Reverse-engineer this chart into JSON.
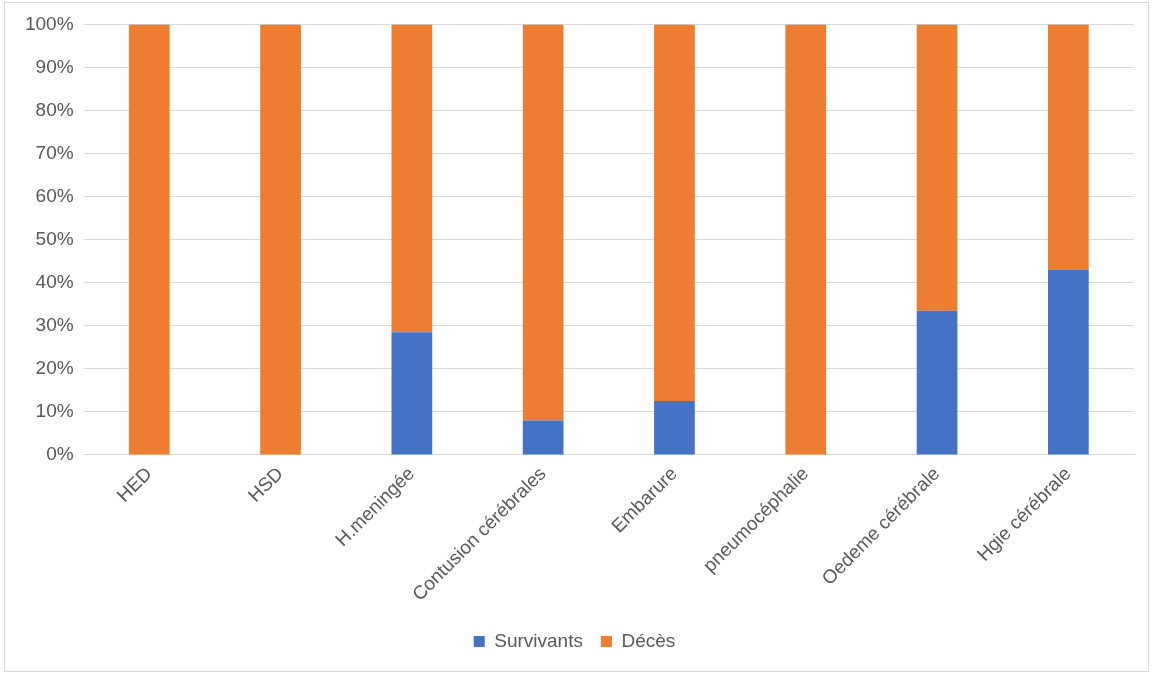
{
  "chart_data": {
    "type": "bar",
    "stacked": true,
    "categories": [
      "HED",
      "HSD",
      "H.meningée",
      "Contusion cérébrales",
      "Embarure",
      "pneumocéphalie",
      "Oedeme cérébrale",
      "Hgie cérébrale"
    ],
    "series": [
      {
        "name": "Survivants",
        "color": "#4472c4",
        "values": [
          0,
          0,
          28.5,
          8,
          12.5,
          0,
          33.5,
          43
        ]
      },
      {
        "name": "Décès",
        "color": "#ed7d31",
        "values": [
          100,
          100,
          71.5,
          92,
          87.5,
          100,
          66.5,
          57
        ]
      }
    ],
    "ylim": [
      0,
      100
    ],
    "yticks": [
      {
        "value": 0,
        "label": "0%"
      },
      {
        "value": 10,
        "label": "10%"
      },
      {
        "value": 20,
        "label": "20%"
      },
      {
        "value": 30,
        "label": "30%"
      },
      {
        "value": 40,
        "label": "40%"
      },
      {
        "value": 50,
        "label": "50%"
      },
      {
        "value": 60,
        "label": "60%"
      },
      {
        "value": 70,
        "label": "70%"
      },
      {
        "value": 80,
        "label": "80%"
      },
      {
        "value": 90,
        "label": "90%"
      },
      {
        "value": 100,
        "label": "100%"
      }
    ],
    "grid": "y",
    "legend": "bottom"
  }
}
